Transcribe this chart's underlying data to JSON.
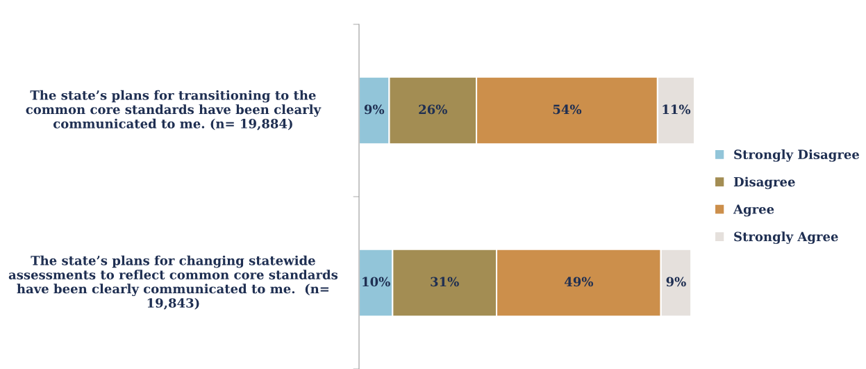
{
  "chart_data": {
    "type": "bar",
    "orientation": "horizontal",
    "stacked": true,
    "categories": [
      "The state’s plans for transitioning to the common core standards have been clearly communicated to me. (n= 19,884)",
      "The state’s plans for changing statewide assessments to reflect common core standards have been clearly communicated to me.  (n= 19,843)"
    ],
    "series": [
      {
        "name": "Strongly Disagree",
        "color": "#92c5d9",
        "values": [
          9,
          10
        ],
        "value_labels": [
          "9%",
          "10%"
        ]
      },
      {
        "name": "Disagree",
        "color": "#a38d53",
        "values": [
          26,
          31
        ],
        "value_labels": [
          "26%",
          "31%"
        ]
      },
      {
        "name": "Agree",
        "color": "#cc8f4b",
        "values": [
          54,
          49
        ],
        "value_labels": [
          "54%",
          "49%"
        ]
      },
      {
        "name": "Strongly Agree",
        "color": "#e5e0dc",
        "values": [
          11,
          9
        ],
        "value_labels": [
          "11%",
          "9%"
        ]
      }
    ],
    "legend": "right"
  }
}
